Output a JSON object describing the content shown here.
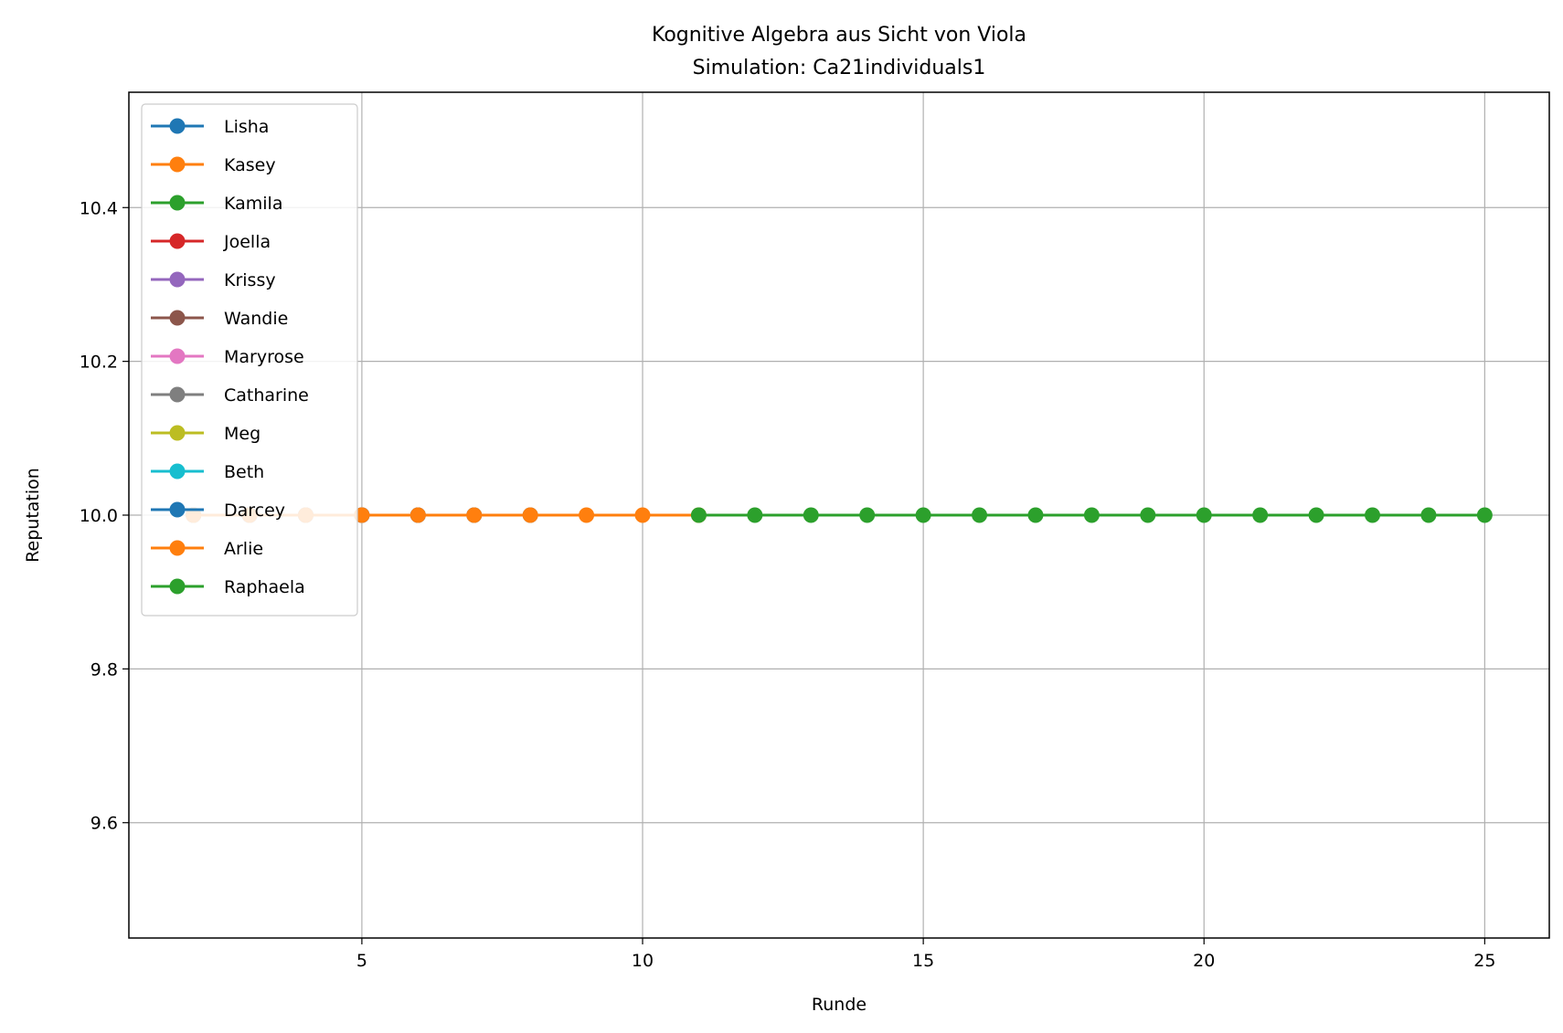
{
  "chart_data": {
    "type": "line",
    "title": "Kognitive Algebra aus Sicht von Viola",
    "subtitle": "Simulation: Ca21individuals1",
    "xlabel": "Runde",
    "ylabel": "Reputation",
    "xlim": [
      0.85,
      26.15
    ],
    "ylim": [
      9.45,
      10.55
    ],
    "xticks": [
      5,
      10,
      15,
      20,
      25
    ],
    "yticks": [
      9.6,
      9.8,
      10.0,
      10.2,
      10.4
    ],
    "ytick_labels": [
      "9.6",
      "9.8",
      "10.0",
      "10.2",
      "10.4"
    ],
    "grid": true,
    "legend_position": "upper-left",
    "series": [
      {
        "name": "Lisha",
        "color": "#1f77b4",
        "x": [],
        "y": []
      },
      {
        "name": "Kasey",
        "color": "#ff7f0e",
        "x": [
          2
        ],
        "y": [
          10.0
        ]
      },
      {
        "name": "Kamila",
        "color": "#2ca02c",
        "x": [
          2,
          3
        ],
        "y": [
          10.0,
          10.0
        ]
      },
      {
        "name": "Joella",
        "color": "#d62728",
        "x": [
          2,
          3
        ],
        "y": [
          10.0,
          10.0
        ]
      },
      {
        "name": "Krissy",
        "color": "#9467bd",
        "x": [
          2,
          3,
          4
        ],
        "y": [
          10.0,
          10.0,
          10.0
        ]
      },
      {
        "name": "Wandie",
        "color": "#8c564b",
        "x": [
          2,
          3,
          4,
          5
        ],
        "y": [
          10.0,
          10.0,
          10.0,
          10.0
        ]
      },
      {
        "name": "Maryrose",
        "color": "#e377c2",
        "x": [
          2,
          3,
          4,
          5,
          6
        ],
        "y": [
          10.0,
          10.0,
          10.0,
          10.0,
          10.0
        ]
      },
      {
        "name": "Catharine",
        "color": "#7f7f7f",
        "x": [
          2,
          3,
          4,
          5,
          6,
          7
        ],
        "y": [
          10.0,
          10.0,
          10.0,
          10.0,
          10.0,
          10.0
        ]
      },
      {
        "name": "Meg",
        "color": "#bcbd22",
        "x": [
          2
        ],
        "y": [
          10.0
        ]
      },
      {
        "name": "Beth",
        "color": "#17becf",
        "x": [],
        "y": []
      },
      {
        "name": "Darcey",
        "color": "#1f77b4",
        "x": [
          2,
          3,
          4,
          5,
          6,
          7,
          8
        ],
        "y": [
          10.0,
          10.0,
          10.0,
          10.0,
          10.0,
          10.0,
          10.0
        ]
      },
      {
        "name": "Arlie",
        "color": "#ff7f0e",
        "x": [
          2,
          3,
          4,
          5,
          6,
          7,
          8,
          9,
          10,
          11
        ],
        "y": [
          10.0,
          10.0,
          10.0,
          10.0,
          10.0,
          10.0,
          10.0,
          10.0,
          10.0,
          10.0
        ]
      },
      {
        "name": "Raphaela",
        "color": "#2ca02c",
        "x": [
          11,
          12,
          13,
          14,
          15,
          16,
          17,
          18,
          19,
          20,
          21,
          22,
          23,
          24,
          25
        ],
        "y": [
          10.0,
          10.0,
          10.0,
          10.0,
          10.0,
          10.0,
          10.0,
          10.0,
          10.0,
          10.0,
          10.0,
          10.0,
          10.0,
          10.0,
          10.0
        ]
      }
    ]
  }
}
